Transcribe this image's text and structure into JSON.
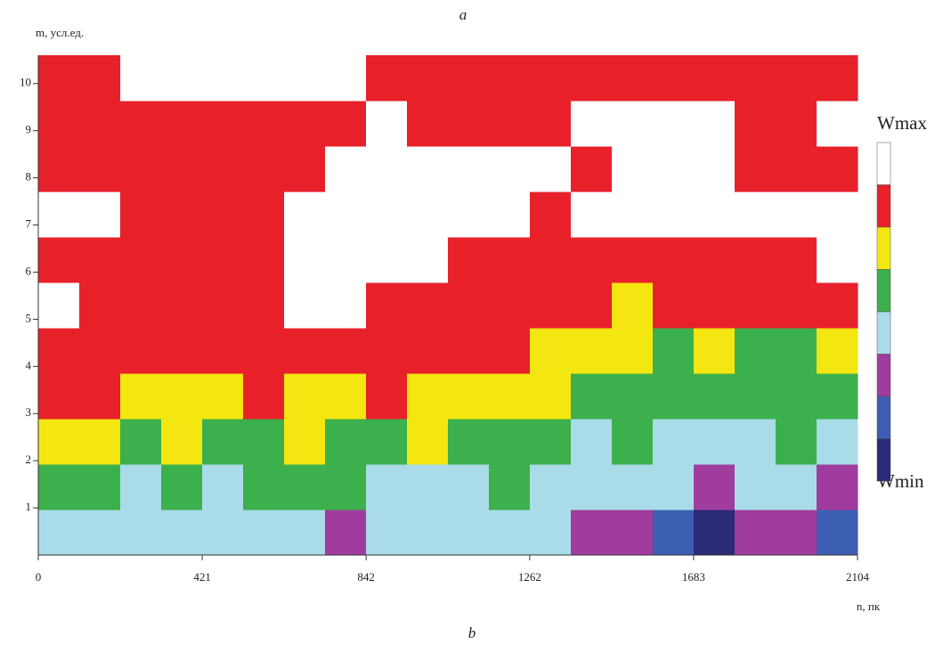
{
  "chart_data": {
    "type": "heatmap",
    "top_label": "a",
    "bottom_label": "b",
    "y_label": "m, усл.ед.",
    "x_label": "n, пк",
    "colorbar_max_label": "Wmax",
    "colorbar_min_label": "Wmin",
    "xlim": [
      0,
      2104
    ],
    "ylim": [
      0,
      10.6
    ],
    "xticks": [
      0,
      421,
      842,
      1262,
      1683,
      2104
    ],
    "yticks": [
      1,
      2,
      3,
      4,
      5,
      6,
      7,
      8,
      9,
      10
    ],
    "colors": [
      "#2a2a78",
      "#3c5fb4",
      "#a03c9e",
      "#a9dce8",
      "#3cb04c",
      "#f4e610",
      "#e8202a",
      "#ffffff"
    ],
    "z": [
      [
        3,
        3,
        3,
        3,
        3,
        3,
        3,
        2,
        3,
        3,
        3,
        3,
        3,
        2,
        2,
        1,
        0,
        2,
        2,
        1
      ],
      [
        4,
        4,
        3,
        4,
        3,
        4,
        4,
        4,
        3,
        3,
        3,
        4,
        3,
        3,
        3,
        3,
        2,
        3,
        3,
        2
      ],
      [
        5,
        5,
        4,
        5,
        4,
        4,
        5,
        4,
        4,
        5,
        4,
        4,
        4,
        3,
        4,
        3,
        3,
        3,
        4,
        3
      ],
      [
        6,
        6,
        5,
        5,
        5,
        6,
        5,
        5,
        6,
        5,
        5,
        5,
        5,
        4,
        4,
        4,
        4,
        4,
        4,
        4
      ],
      [
        6,
        6,
        6,
        6,
        6,
        6,
        6,
        6,
        6,
        6,
        6,
        6,
        5,
        5,
        5,
        4,
        5,
        4,
        4,
        5
      ],
      [
        7,
        6,
        6,
        6,
        6,
        6,
        7,
        7,
        6,
        6,
        6,
        6,
        6,
        6,
        5,
        6,
        6,
        6,
        6,
        6
      ],
      [
        6,
        6,
        6,
        6,
        6,
        6,
        7,
        7,
        7,
        7,
        6,
        6,
        6,
        6,
        6,
        6,
        6,
        6,
        6,
        7
      ],
      [
        7,
        7,
        6,
        6,
        6,
        6,
        7,
        7,
        7,
        7,
        7,
        7,
        6,
        7,
        7,
        7,
        7,
        7,
        7,
        7
      ],
      [
        6,
        6,
        6,
        6,
        6,
        6,
        6,
        7,
        7,
        7,
        7,
        7,
        7,
        6,
        7,
        7,
        7,
        6,
        6,
        6
      ],
      [
        6,
        6,
        6,
        6,
        6,
        6,
        6,
        6,
        7,
        6,
        6,
        6,
        6,
        7,
        7,
        7,
        7,
        6,
        6,
        7
      ],
      [
        6,
        6,
        7,
        7,
        7,
        7,
        7,
        7,
        6,
        6,
        6,
        6,
        6,
        6,
        6,
        6,
        6,
        6,
        6,
        6
      ]
    ]
  }
}
